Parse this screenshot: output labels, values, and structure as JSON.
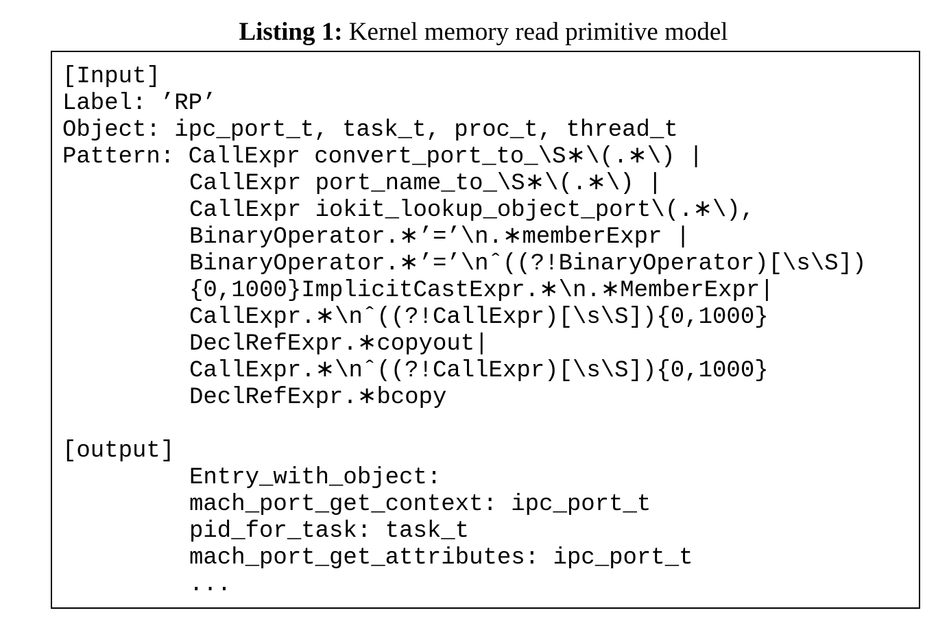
{
  "caption": {
    "label": "Listing 1:",
    "text": "Kernel memory read primitive model"
  },
  "listing": {
    "input_lines": [
      "[Input]",
      "Label: ’RP’",
      "Object: ipc_port_t, task_t, proc_t, thread_t",
      "Pattern: CallExpr convert_port_to_\\S∗\\(.∗\\) |",
      "CallExpr port_name_to_\\S∗\\(.∗\\) |",
      "CallExpr iokit_lookup_object_port\\(.∗\\),",
      "BinaryOperator.∗’=’\\n.∗memberExpr |",
      "BinaryOperator.∗’=’\\nˆ((?!BinaryOperator)[\\s\\S])",
      "{0,1000}ImplicitCastExpr.∗\\n.∗MemberExpr|",
      "CallExpr.∗\\nˆ((?!CallExpr)[\\s\\S]){0,1000}",
      "DeclRefExpr.∗copyout|",
      "CallExpr.∗\\nˆ((?!CallExpr)[\\s\\S]){0,1000}",
      "DeclRefExpr.∗bcopy"
    ],
    "output_header": "[output]",
    "output_lines": [
      "Entry_with_object:",
      "mach_port_get_context: ipc_port_t",
      "pid_for_task: task_t",
      "mach_port_get_attributes: ipc_port_t",
      "..."
    ]
  }
}
